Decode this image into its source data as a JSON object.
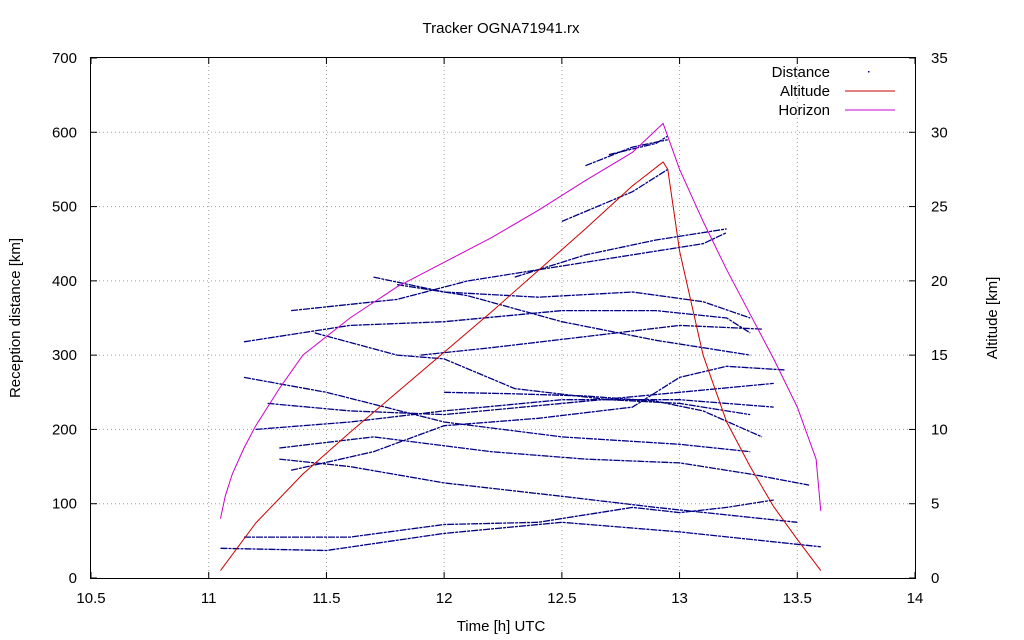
{
  "chart_data": {
    "type": "line",
    "title": "Tracker OGNA71941.rx",
    "xlabel": "Time [h] UTC",
    "ylabel": "Reception distance [km]",
    "y2label": "Altitude [km]",
    "xlim": [
      10.5,
      14
    ],
    "ylim": [
      0,
      700
    ],
    "y2lim": [
      0,
      35
    ],
    "xticks": [
      "10.5",
      "11",
      "11.5",
      "12",
      "12.5",
      "13",
      "13.5",
      "14"
    ],
    "yticks": [
      "0",
      "100",
      "200",
      "300",
      "400",
      "500",
      "600",
      "700"
    ],
    "y2ticks": [
      "0",
      "5",
      "10",
      "15",
      "20",
      "25",
      "30",
      "35"
    ],
    "grid": true,
    "legend_position": "top-right",
    "series": [
      {
        "name": "Altitude",
        "axis": "y2",
        "color": "#cc0000",
        "x": [
          11.05,
          11.2,
          11.4,
          11.6,
          11.8,
          12.0,
          12.2,
          12.4,
          12.6,
          12.8,
          12.93,
          12.95,
          13.0,
          13.1,
          13.2,
          13.3,
          13.4,
          13.5,
          13.6
        ],
        "y": [
          0.5,
          3.7,
          7.0,
          9.8,
          12.5,
          15.2,
          17.9,
          20.7,
          23.5,
          26.4,
          28.0,
          27.5,
          22.0,
          15.0,
          10.5,
          7.5,
          4.8,
          2.6,
          0.5
        ]
      },
      {
        "name": "Horizon",
        "axis": "y",
        "color": "#cc00cc",
        "x": [
          11.05,
          11.07,
          11.1,
          11.15,
          11.2,
          11.3,
          11.4,
          11.6,
          11.8,
          12.0,
          12.2,
          12.4,
          12.6,
          12.8,
          12.93,
          13.0,
          13.1,
          13.2,
          13.3,
          13.4,
          13.5,
          13.58,
          13.6
        ],
        "y": [
          80,
          110,
          140,
          175,
          205,
          255,
          300,
          350,
          392,
          425,
          458,
          495,
          535,
          573,
          612,
          550,
          480,
          415,
          355,
          295,
          230,
          160,
          90
        ]
      },
      {
        "name": "Distance",
        "axis": "y",
        "color": "#000080",
        "style": "dots",
        "tracks": [
          {
            "x": [
              11.05,
              11.5,
              12.0,
              12.5,
              13.0,
              13.6
            ],
            "y": [
              40,
              37,
              60,
              75,
              62,
              42
            ]
          },
          {
            "x": [
              11.15,
              11.6,
              12.0,
              12.4,
              12.8,
              13.0,
              13.2,
              13.4
            ],
            "y": [
              55,
              55,
              72,
              75,
              95,
              88,
              95,
              105
            ]
          },
          {
            "x": [
              11.3,
              11.6,
              12.0,
              12.5,
              12.9,
              13.2,
              13.5
            ],
            "y": [
              160,
              150,
              128,
              110,
              95,
              85,
              75
            ]
          },
          {
            "x": [
              11.3,
              11.7,
              12.2,
              12.6,
              13.0,
              13.3,
              13.55
            ],
            "y": [
              175,
              190,
              170,
              160,
              155,
              140,
              125
            ]
          },
          {
            "x": [
              11.15,
              11.5,
              12.0,
              12.5,
              13.0,
              13.3
            ],
            "y": [
              270,
              250,
              210,
              190,
              180,
              170
            ]
          },
          {
            "x": [
              11.2,
              11.6,
              12.0,
              12.5,
              13.0,
              13.4
            ],
            "y": [
              200,
              210,
              225,
              240,
              240,
              230
            ]
          },
          {
            "x": [
              11.25,
              11.6,
              12.0,
              12.5,
              13.0,
              13.4
            ],
            "y": [
              235,
              225,
              220,
              235,
              250,
              262
            ]
          },
          {
            "x": [
              11.35,
              11.7,
              12.0,
              12.4,
              12.8,
              13.0,
              13.2,
              13.45
            ],
            "y": [
              145,
              170,
              205,
              215,
              230,
              270,
              285,
              280
            ]
          },
          {
            "x": [
              11.45,
              11.8,
              12.0,
              12.3,
              12.7,
              13.0,
              13.3
            ],
            "y": [
              330,
              300,
              295,
              255,
              240,
              235,
              220
            ]
          },
          {
            "x": [
              11.15,
              11.6,
              12.0,
              12.5,
              12.9,
              13.2,
              13.3
            ],
            "y": [
              318,
              340,
              345,
              360,
              360,
              350,
              330
            ]
          },
          {
            "x": [
              11.35,
              11.8,
              12.1,
              12.5,
              12.9,
              13.1,
              13.2
            ],
            "y": [
              360,
              375,
              400,
              420,
              440,
              450,
              465
            ]
          },
          {
            "x": [
              11.7,
              12.0,
              12.4,
              12.8,
              13.1,
              13.3
            ],
            "y": [
              405,
              385,
              378,
              385,
              372,
              350
            ]
          },
          {
            "x": [
              11.8,
              12.1,
              12.5,
              12.9,
              13.3
            ],
            "y": [
              395,
              380,
              345,
              320,
              300
            ]
          },
          {
            "x": [
              11.9,
              12.2,
              12.6,
              13.0,
              13.35
            ],
            "y": [
              300,
              310,
              325,
              340,
              335
            ]
          },
          {
            "x": [
              12.0,
              12.3,
              12.6,
              12.9,
              13.1,
              13.35
            ],
            "y": [
              250,
              248,
              245,
              238,
              225,
              190
            ]
          },
          {
            "x": [
              12.3,
              12.6,
              12.9,
              13.2
            ],
            "y": [
              405,
              435,
              455,
              470
            ]
          },
          {
            "x": [
              12.5,
              12.8,
              12.95
            ],
            "y": [
              480,
              520,
              550
            ]
          },
          {
            "x": [
              12.6,
              12.8,
              12.95
            ],
            "y": [
              555,
              580,
              590
            ]
          },
          {
            "x": [
              12.7,
              12.9,
              12.95
            ],
            "y": [
              570,
              585,
              595
            ]
          }
        ]
      }
    ]
  }
}
